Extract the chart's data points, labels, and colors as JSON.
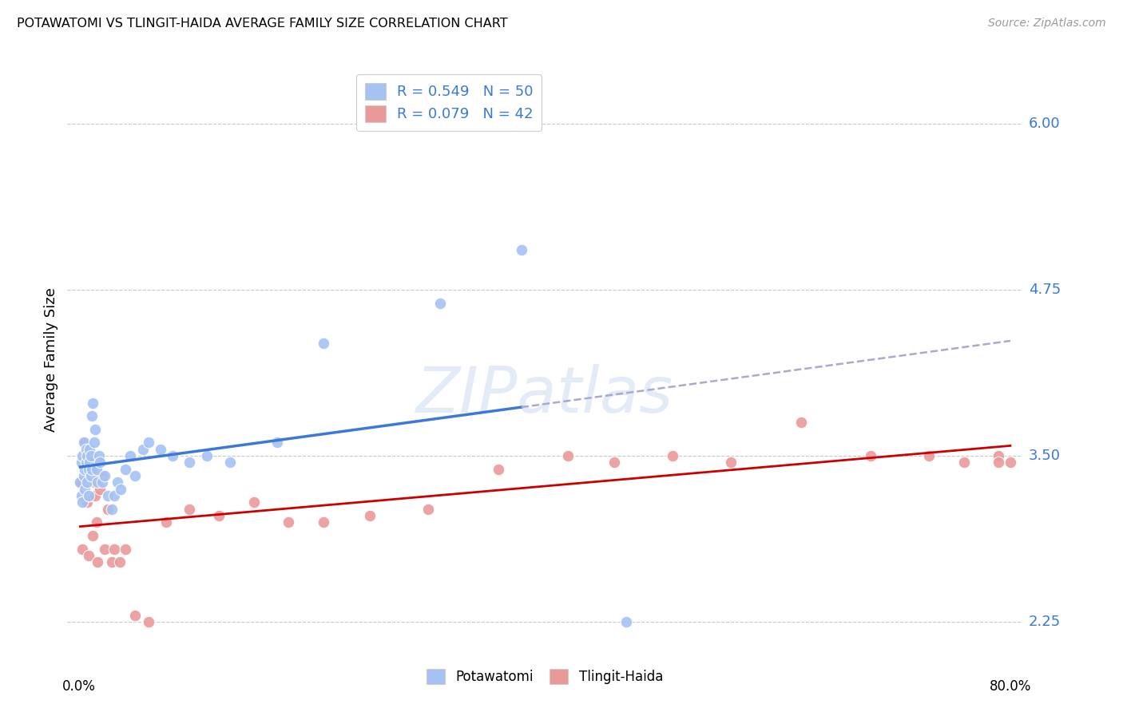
{
  "title": "POTAWATOMI VS TLINGIT-HAIDA AVERAGE FAMILY SIZE CORRELATION CHART",
  "source": "Source: ZipAtlas.com",
  "ylabel": "Average Family Size",
  "yticks": [
    2.25,
    3.5,
    4.75,
    6.0
  ],
  "background_color": "#ffffff",
  "grid_color": "#c8c8c8",
  "watermark": "ZIPatlas",
  "blue_R": 0.549,
  "blue_N": 50,
  "pink_R": 0.079,
  "pink_N": 42,
  "blue_color": "#a4c2f4",
  "pink_color": "#ea9999",
  "blue_line_color": "#3c78d8",
  "pink_line_color": "#cc0000",
  "legend_text_color": "#3c78d8",
  "blue_scatter_x": [
    0.001,
    0.002,
    0.002,
    0.003,
    0.003,
    0.004,
    0.004,
    0.005,
    0.005,
    0.006,
    0.006,
    0.007,
    0.007,
    0.008,
    0.008,
    0.009,
    0.009,
    0.01,
    0.01,
    0.011,
    0.011,
    0.012,
    0.013,
    0.014,
    0.015,
    0.016,
    0.017,
    0.018,
    0.02,
    0.022,
    0.025,
    0.028,
    0.03,
    0.033,
    0.036,
    0.04,
    0.044,
    0.048,
    0.055,
    0.06,
    0.07,
    0.08,
    0.095,
    0.11,
    0.13,
    0.17,
    0.21,
    0.31,
    0.38,
    0.47
  ],
  "blue_scatter_y": [
    3.3,
    3.45,
    3.2,
    3.5,
    3.15,
    3.6,
    3.35,
    3.4,
    3.25,
    3.55,
    3.45,
    3.3,
    3.5,
    3.2,
    3.4,
    3.55,
    3.45,
    3.35,
    3.5,
    3.4,
    3.8,
    3.9,
    3.6,
    3.7,
    3.4,
    3.3,
    3.5,
    3.45,
    3.3,
    3.35,
    3.2,
    3.1,
    3.2,
    3.3,
    3.25,
    3.4,
    3.5,
    3.35,
    3.55,
    3.6,
    3.55,
    3.5,
    3.45,
    3.5,
    3.45,
    3.6,
    4.35,
    4.65,
    5.05,
    2.25
  ],
  "pink_scatter_x": [
    0.001,
    0.003,
    0.005,
    0.007,
    0.008,
    0.009,
    0.01,
    0.012,
    0.013,
    0.014,
    0.015,
    0.016,
    0.018,
    0.02,
    0.022,
    0.025,
    0.028,
    0.03,
    0.035,
    0.04,
    0.048,
    0.06,
    0.075,
    0.095,
    0.12,
    0.15,
    0.18,
    0.21,
    0.25,
    0.3,
    0.36,
    0.42,
    0.46,
    0.51,
    0.56,
    0.62,
    0.68,
    0.73,
    0.76,
    0.79,
    0.8,
    0.79
  ],
  "pink_scatter_y": [
    3.3,
    2.8,
    3.6,
    3.15,
    2.75,
    3.4,
    3.2,
    2.9,
    3.3,
    3.2,
    3.0,
    2.7,
    3.25,
    3.35,
    2.8,
    3.1,
    2.7,
    2.8,
    2.7,
    2.8,
    2.3,
    2.25,
    3.0,
    3.1,
    3.05,
    3.15,
    3.0,
    3.0,
    3.05,
    3.1,
    3.4,
    3.5,
    3.45,
    3.5,
    3.45,
    3.75,
    3.5,
    3.5,
    3.45,
    3.5,
    3.45,
    3.45
  ]
}
